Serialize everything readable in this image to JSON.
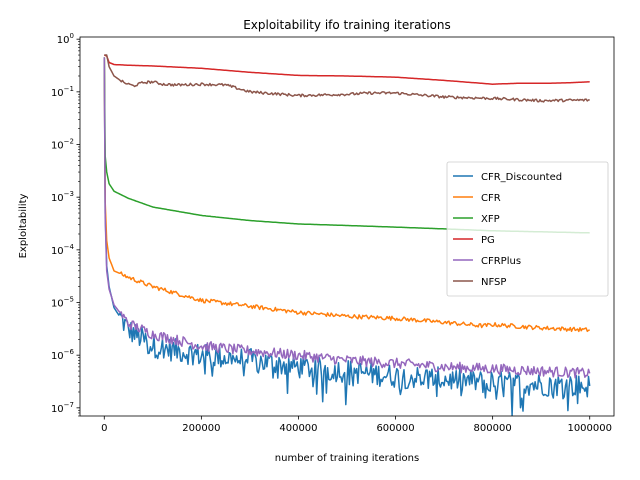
{
  "chart_data": {
    "type": "line",
    "title": "Exploitability ifo training iterations",
    "xlabel": "number of training iterations",
    "ylabel": "Exploitability",
    "xlim": [
      -50000,
      1050000
    ],
    "ylim": [
      7e-08,
      1.1
    ],
    "yscale": "log",
    "grid": false,
    "legend_position": "center-right",
    "x_ticks": [
      {
        "value": 0,
        "label": "0"
      },
      {
        "value": 200000,
        "label": "200000"
      },
      {
        "value": 400000,
        "label": "400000"
      },
      {
        "value": 600000,
        "label": "600000"
      },
      {
        "value": 800000,
        "label": "800000"
      },
      {
        "value": 1000000,
        "label": "1000000"
      }
    ],
    "y_ticks": [
      {
        "value": 1e-07,
        "base": "10",
        "exp": "−7"
      },
      {
        "value": 1e-06,
        "base": "10",
        "exp": "−6"
      },
      {
        "value": 1e-05,
        "base": "10",
        "exp": "−5"
      },
      {
        "value": 0.0001,
        "base": "10",
        "exp": "−4"
      },
      {
        "value": 0.001,
        "base": "10",
        "exp": "−3"
      },
      {
        "value": 0.01,
        "base": "10",
        "exp": "−2"
      },
      {
        "value": 0.1,
        "base": "10",
        "exp": "−1"
      },
      {
        "value": 1,
        "base": "10",
        "exp": "0"
      }
    ],
    "series": [
      {
        "name": "CFR_Discounted",
        "color": "#1f77b4",
        "noise": 0.45,
        "x": [
          0,
          2000,
          5000,
          10000,
          20000,
          50000,
          100000,
          200000,
          300000,
          400000,
          500000,
          600000,
          700000,
          800000,
          900000,
          1000000
        ],
        "y": [
          0.45,
          0.0005,
          5e-05,
          2e-05,
          8e-06,
          3e-06,
          1.5e-06,
          1e-06,
          8e-07,
          6e-07,
          5e-07,
          4e-07,
          3.5e-07,
          3e-07,
          2.8e-07,
          2.6e-07
        ]
      },
      {
        "name": "CFR",
        "color": "#ff7f0e",
        "noise": 0.08,
        "x": [
          0,
          2000,
          5000,
          10000,
          20000,
          50000,
          100000,
          200000,
          300000,
          400000,
          500000,
          600000,
          700000,
          780000,
          800000,
          900000,
          1000000
        ],
        "y": [
          0.45,
          0.0008,
          0.00015,
          7e-05,
          4e-05,
          3e-05,
          2e-05,
          1.1e-05,
          8.5e-06,
          6.5e-06,
          5.5e-06,
          5e-06,
          4.2e-06,
          3.6e-06,
          3.8e-06,
          3.3e-06,
          3e-06
        ]
      },
      {
        "name": "XFP",
        "color": "#2ca02c",
        "noise": 0,
        "x": [
          0,
          2000,
          5000,
          10000,
          20000,
          50000,
          100000,
          200000,
          300000,
          400000,
          500000,
          600000,
          700000,
          800000,
          900000,
          1000000
        ],
        "y": [
          0.45,
          0.006,
          0.003,
          0.0018,
          0.0013,
          0.00095,
          0.00065,
          0.00045,
          0.00036,
          0.00031,
          0.00029,
          0.00027,
          0.00025,
          0.00023,
          0.00022,
          0.00021
        ]
      },
      {
        "name": "PG",
        "color": "#d62728",
        "noise": 0,
        "x": [
          0,
          5000,
          10000,
          20000,
          50000,
          100000,
          200000,
          300000,
          400000,
          500000,
          600000,
          700000,
          800000,
          850000,
          900000,
          950000,
          1000000
        ],
        "y": [
          0.5,
          0.48,
          0.36,
          0.33,
          0.32,
          0.31,
          0.28,
          0.235,
          0.205,
          0.2,
          0.19,
          0.165,
          0.14,
          0.145,
          0.145,
          0.148,
          0.155
        ]
      },
      {
        "name": "CFRPlus",
        "color": "#9467bd",
        "noise": 0.2,
        "x": [
          0,
          2000,
          5000,
          10000,
          20000,
          50000,
          100000,
          200000,
          300000,
          400000,
          500000,
          600000,
          700000,
          800000,
          900000,
          1000000
        ],
        "y": [
          0.45,
          0.0004,
          4e-05,
          1.8e-05,
          9e-06,
          4e-06,
          2.5e-06,
          1.5e-06,
          1.2e-06,
          1e-06,
          8e-07,
          7e-07,
          6e-07,
          5.5e-07,
          5e-07,
          4.5e-07
        ]
      },
      {
        "name": "NFSP",
        "color": "#8c564b",
        "noise": 0.05,
        "x": [
          0,
          5000,
          10000,
          20000,
          40000,
          60000,
          80000,
          100000,
          120000,
          150000,
          200000,
          250000,
          300000,
          400000,
          500000,
          550000,
          600000,
          700000,
          800000,
          900000,
          1000000
        ],
        "y": [
          0.5,
          0.5,
          0.3,
          0.2,
          0.15,
          0.13,
          0.15,
          0.155,
          0.14,
          0.135,
          0.14,
          0.135,
          0.1,
          0.085,
          0.09,
          0.095,
          0.095,
          0.08,
          0.075,
          0.068,
          0.07
        ]
      }
    ]
  }
}
